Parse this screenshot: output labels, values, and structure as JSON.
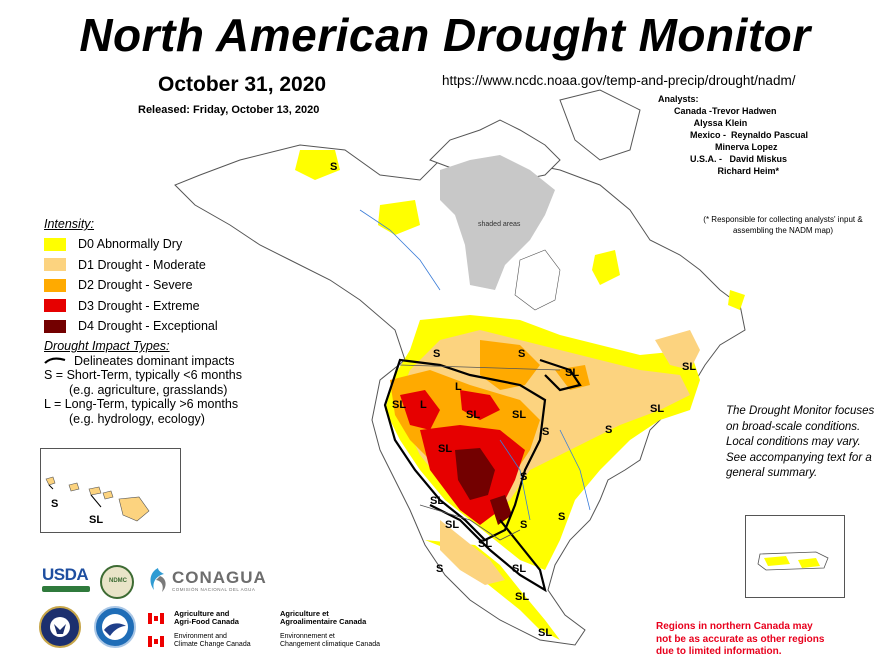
{
  "header": {
    "title": "North American Drought Monitor",
    "map_date": "October 31, 2020",
    "released": "Released: Friday, October 13, 2020",
    "url": "https://www.ncdc.noaa.gov/temp-and-precip/drought/nadm/"
  },
  "analysts": {
    "heading": "Analysts:",
    "rows": [
      "Canada -Trevor Hadwen",
      "        Alyssa Klein",
      "Mexico -  Reynaldo Pascual",
      "          Minerva Lopez",
      "U.S.A. -   David Miskus",
      "           Richard Heim*"
    ],
    "note": "(* Responsible for collecting analysts' input & assembling the NADM map)"
  },
  "legend": {
    "heading": "Intensity:",
    "items": [
      {
        "label": "D0 Abnormally Dry",
        "color": "#ffff00"
      },
      {
        "label": "D1 Drought - Moderate",
        "color": "#fcd37f"
      },
      {
        "label": "D2 Drought - Severe",
        "color": "#ffaa00"
      },
      {
        "label": "D3 Drought - Extreme",
        "color": "#e60000"
      },
      {
        "label": "D4 Drought - Exceptional",
        "color": "#730000"
      }
    ]
  },
  "impact_types": {
    "heading": "Drought Impact Types:",
    "delineates": "Delineates dominant impacts",
    "short_term": "S = Short-Term, typically <6 months",
    "short_term_eg": "(e.g. agriculture, grasslands)",
    "long_term": "L = Long-Term, typically >6 months",
    "long_term_eg": "(e.g. hydrology, ecology)"
  },
  "map": {
    "shaded_label": "shaded areas",
    "labels": [
      "S",
      "S",
      "S",
      "SL",
      "L",
      "SL",
      "SL",
      "L",
      "SL",
      "SL",
      "SL",
      "SL",
      "S",
      "S",
      "S",
      "S",
      "SL",
      "SL",
      "S",
      "SL",
      "SL",
      "SL",
      "S",
      "SL"
    ],
    "hawaii_labels": [
      "S",
      "SL"
    ]
  },
  "notes": {
    "focus": "The Drought Monitor focuses on broad-scale conditions.  Local conditions may vary.  See accompanying text for a general summary.",
    "regions": [
      "Regions in northern Canada may",
      "not be as accurate as other regions",
      "due to limited information."
    ]
  },
  "logos": {
    "usda": "USDA",
    "ndmc": "NDMC",
    "conagua": "CONAGUA",
    "conagua_sub": "COMISIÓN NACIONAL DEL AGUA",
    "agri_en": [
      "Agriculture and",
      "Agri-Food Canada"
    ],
    "agri_fr": [
      "Agriculture et",
      "Agroalimentaire Canada"
    ],
    "env_en": [
      "Environment and",
      "Climate Change Canada"
    ],
    "env_fr": [
      "Environnement et",
      "Changement climatique Canada"
    ]
  },
  "colors": {
    "water": "#5b9bd5",
    "no_data": "#c8c8c8",
    "border": "#555555",
    "river": "#3a7cd8"
  }
}
